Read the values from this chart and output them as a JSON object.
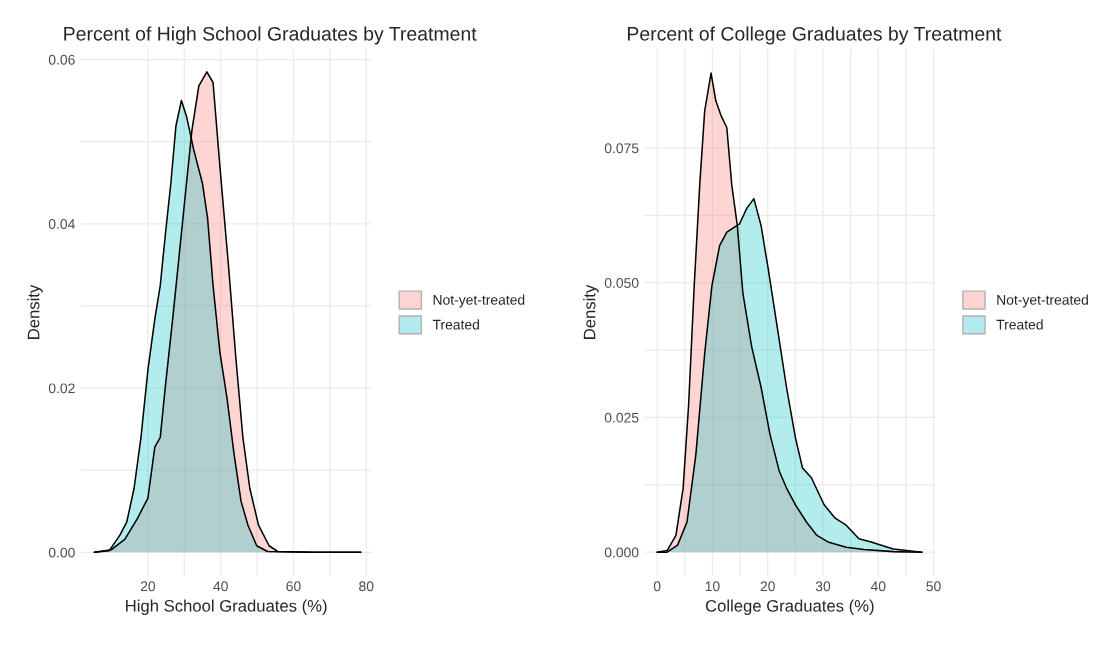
{
  "chart_data": [
    {
      "type": "area",
      "title": "Percent of High School Graduates by Treatment",
      "xlabel": "High School Graduates (%)",
      "ylabel": "Density",
      "xlim": [
        1.4,
        81.6
      ],
      "ylim": [
        -0.0029,
        0.0613
      ],
      "xticks": [
        20,
        40,
        60,
        80
      ],
      "yticks": [
        {
          "value": 0,
          "label": "0.00"
        },
        {
          "value": 0.02,
          "label": "0.02"
        },
        {
          "value": 0.04,
          "label": "0.04"
        },
        {
          "value": 0.06,
          "label": "0.06"
        }
      ],
      "grid": true,
      "legend": "right",
      "series": [
        {
          "name": "Not-yet-treated",
          "color": "#f8766d",
          "x": [
            5.3,
            9.9,
            13.7,
            17.1,
            20,
            21.9,
            23.4,
            24.8,
            26.8,
            28.7,
            30.6,
            32.1,
            34,
            36.2,
            37.9,
            39.8,
            42.2,
            44.2,
            46.1,
            48,
            50.4,
            53.3,
            55.7,
            65.4,
            78.5
          ],
          "values": [
            0,
            0.0003,
            0.0016,
            0.0041,
            0.0066,
            0.0128,
            0.014,
            0.0202,
            0.0284,
            0.0366,
            0.0449,
            0.0514,
            0.0568,
            0.0585,
            0.0572,
            0.0469,
            0.0346,
            0.0235,
            0.014,
            0.0078,
            0.0033,
            0.0008,
            0.0001,
            0,
            0
          ]
        },
        {
          "name": "Treated",
          "color": "#00bfc4",
          "x": [
            5.3,
            9.4,
            12.3,
            14.2,
            16.2,
            18.1,
            20,
            21.9,
            23.4,
            24.8,
            26.3,
            27.7,
            29.2,
            30.6,
            32.6,
            35,
            36.4,
            37.9,
            39.8,
            41.7,
            43.7,
            45.6,
            47.5,
            49.9,
            52.9,
            65.4,
            78.5
          ],
          "values": [
            0,
            0.0002,
            0.0021,
            0.0037,
            0.0078,
            0.014,
            0.0222,
            0.0284,
            0.0325,
            0.0387,
            0.0449,
            0.0519,
            0.055,
            0.0531,
            0.049,
            0.0449,
            0.0407,
            0.0325,
            0.0243,
            0.0189,
            0.0119,
            0.0062,
            0.0033,
            0.0008,
            0.0001,
            0,
            0
          ]
        }
      ]
    },
    {
      "type": "area",
      "title": "Percent of College Graduates by Treatment",
      "xlabel": "College Graduates (%)",
      "ylabel": "Density",
      "xlim": [
        -2.4,
        50.4
      ],
      "ylim": [
        -0.00445,
        0.0934
      ],
      "xticks": [
        0,
        10,
        20,
        30,
        40,
        50
      ],
      "yticks": [
        {
          "value": 0,
          "label": "0.000"
        },
        {
          "value": 0.025,
          "label": "0.025"
        },
        {
          "value": 0.05,
          "label": "0.050"
        },
        {
          "value": 0.075,
          "label": "0.075"
        }
      ],
      "grid": true,
      "legend": "right",
      "series": [
        {
          "name": "Not-yet-treated",
          "color": "#f8766d",
          "x": [
            0,
            1.8,
            3.4,
            4.7,
            5.7,
            6.7,
            7.7,
            8.6,
            9.75,
            10.6,
            11.6,
            12.6,
            13.5,
            14.5,
            15.5,
            17.1,
            18.8,
            20.4,
            22.1,
            23.4,
            25,
            27,
            28.9,
            30.9,
            34.2,
            37.4,
            42.7,
            47.9
          ],
          "values": [
            0,
            0.0003,
            0.0031,
            0.0119,
            0.0275,
            0.0494,
            0.0681,
            0.0819,
            0.0889,
            0.0838,
            0.0809,
            0.0788,
            0.0681,
            0.0606,
            0.0481,
            0.0381,
            0.0306,
            0.0219,
            0.015,
            0.0119,
            0.0088,
            0.0056,
            0.0031,
            0.0019,
            0.0009,
            0.0005,
            0.0001,
            0
          ]
        },
        {
          "name": "Treated",
          "color": "#00bfc4",
          "x": [
            0,
            1.8,
            3.7,
            5.4,
            7,
            8.6,
            9.9,
            11.3,
            12.6,
            14.9,
            16.2,
            17.5,
            18.8,
            20.1,
            21.7,
            23.4,
            25,
            26.3,
            27.9,
            30.2,
            32.2,
            34.2,
            36.5,
            38.7,
            42.7,
            47.9
          ],
          "values": [
            0,
            0,
            0.0013,
            0.0056,
            0.0181,
            0.0369,
            0.0494,
            0.0569,
            0.0594,
            0.0609,
            0.0638,
            0.0656,
            0.0606,
            0.0525,
            0.0419,
            0.0306,
            0.0213,
            0.0156,
            0.0138,
            0.0088,
            0.0063,
            0.005,
            0.0025,
            0.0019,
            0.0006,
            0
          ]
        }
      ]
    }
  ]
}
